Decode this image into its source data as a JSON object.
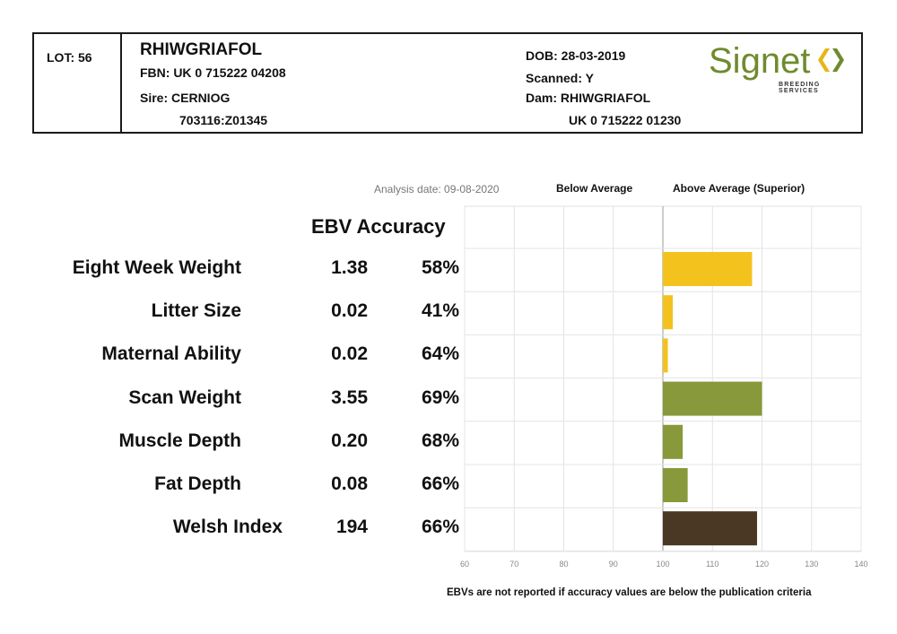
{
  "header": {
    "lot": "LOT: 56",
    "name": "RHIWGRIAFOL",
    "fbn": "FBN: UK 0 715222 04208",
    "sire": "Sire: CERNIOG",
    "sire_id": "703116:Z01345",
    "dob": "DOB: 28-03-2019",
    "scanned": "Scanned: Y",
    "dam": "Dam: RHIWGRIAFOL",
    "dam_id": "UK 0 715222 01230"
  },
  "logo": {
    "word": "Signet",
    "sub": "BREEDING SERVICES",
    "colors": {
      "text": "#6f8b2e",
      "chevron_left": "#e8b514",
      "chevron_right": "#6f8b2e"
    }
  },
  "meta": {
    "analysis_date": "Analysis date: 09-08-2020",
    "below_label": "Below Average",
    "above_label": "Above Average (Superior)",
    "column_header": "EBV Accuracy",
    "footnote": "EBVs are not reported if accuracy values are below the publication criteria"
  },
  "rows": [
    {
      "trait": "Eight Week Weight",
      "ebv": "1.38",
      "accuracy": "58%"
    },
    {
      "trait": "Litter Size",
      "ebv": "0.02",
      "accuracy": "41%"
    },
    {
      "trait": "Maternal Ability",
      "ebv": "0.02",
      "accuracy": "64%"
    },
    {
      "trait": "Scan Weight",
      "ebv": "3.55",
      "accuracy": "69%"
    },
    {
      "trait": "Muscle Depth",
      "ebv": "0.20",
      "accuracy": "68%"
    },
    {
      "trait": "Fat Depth",
      "ebv": "0.08",
      "accuracy": "66%"
    },
    {
      "trait": "Welsh Index",
      "ebv": "194",
      "accuracy": "66%"
    }
  ],
  "chart_data": {
    "type": "bar",
    "orientation": "horizontal",
    "categories": [
      "Eight Week Weight",
      "Litter Size",
      "Maternal Ability",
      "Scan Weight",
      "Muscle Depth",
      "Fat Depth",
      "Welsh Index"
    ],
    "values": [
      118,
      102,
      101,
      120,
      104,
      105,
      119
    ],
    "baseline": 100,
    "xlim": [
      60,
      140
    ],
    "xticks": [
      "60",
      "70",
      "80",
      "90",
      "100",
      "110",
      "120",
      "130",
      "140"
    ],
    "grid": true,
    "bar_colors": [
      "#f4c21d",
      "#f4c21d",
      "#f4c21d",
      "#87993a",
      "#87993a",
      "#87993a",
      "#4a3824"
    ]
  }
}
